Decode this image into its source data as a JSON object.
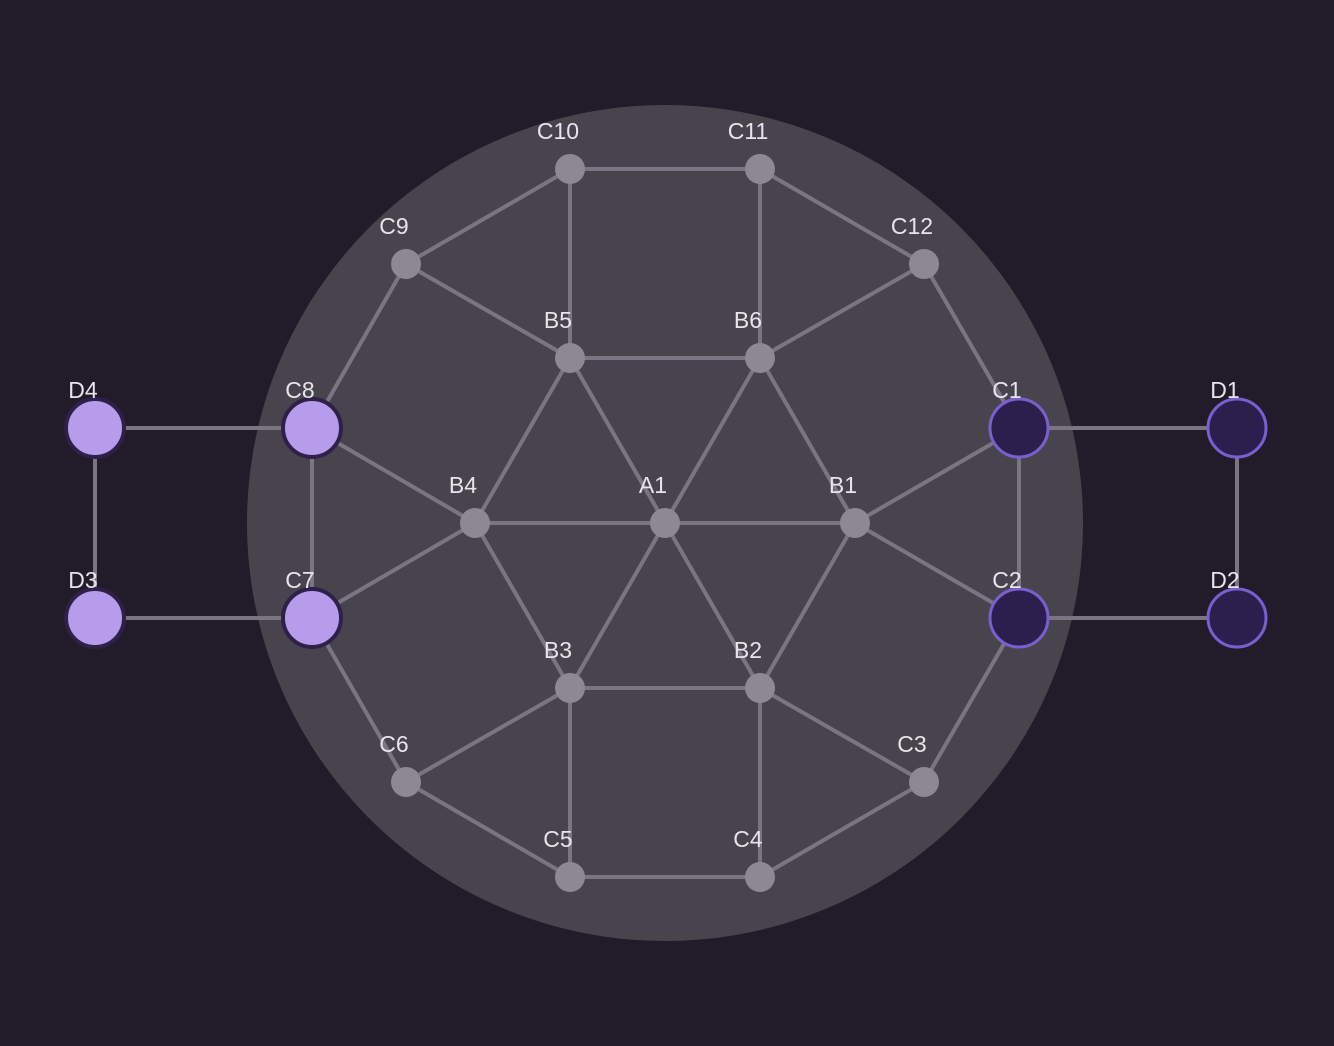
{
  "colors": {
    "background": "#221b29",
    "board_disc": "#48444d",
    "edge": "#7b7482",
    "empty_node": "#8d8892",
    "light_piece": "#b89cec",
    "light_ring": "#2e2048",
    "dark_piece": "#2c1f4e",
    "dark_ring": "#7a5fd0",
    "label": "#e8e4ec"
  },
  "nodes": [
    {
      "id": "A1",
      "label": "A1",
      "state": "empty"
    },
    {
      "id": "B1",
      "label": "B1",
      "state": "empty"
    },
    {
      "id": "B2",
      "label": "B2",
      "state": "empty"
    },
    {
      "id": "B3",
      "label": "B3",
      "state": "empty"
    },
    {
      "id": "B4",
      "label": "B4",
      "state": "empty"
    },
    {
      "id": "B5",
      "label": "B5",
      "state": "empty"
    },
    {
      "id": "B6",
      "label": "B6",
      "state": "empty"
    },
    {
      "id": "C1",
      "label": "C1",
      "state": "dark"
    },
    {
      "id": "C2",
      "label": "C2",
      "state": "dark"
    },
    {
      "id": "C3",
      "label": "C3",
      "state": "empty"
    },
    {
      "id": "C4",
      "label": "C4",
      "state": "empty"
    },
    {
      "id": "C5",
      "label": "C5",
      "state": "empty"
    },
    {
      "id": "C6",
      "label": "C6",
      "state": "empty"
    },
    {
      "id": "C7",
      "label": "C7",
      "state": "light"
    },
    {
      "id": "C8",
      "label": "C8",
      "state": "light"
    },
    {
      "id": "C9",
      "label": "C9",
      "state": "empty"
    },
    {
      "id": "C10",
      "label": "C10",
      "state": "empty"
    },
    {
      "id": "C11",
      "label": "C11",
      "state": "empty"
    },
    {
      "id": "C12",
      "label": "C12",
      "state": "empty"
    },
    {
      "id": "D1",
      "label": "D1",
      "state": "dark"
    },
    {
      "id": "D2",
      "label": "D2",
      "state": "dark"
    },
    {
      "id": "D3",
      "label": "D3",
      "state": "light"
    },
    {
      "id": "D4",
      "label": "D4",
      "state": "light"
    }
  ],
  "edges": [
    [
      "A1",
      "B1"
    ],
    [
      "A1",
      "B2"
    ],
    [
      "A1",
      "B3"
    ],
    [
      "A1",
      "B4"
    ],
    [
      "A1",
      "B5"
    ],
    [
      "A1",
      "B6"
    ],
    [
      "B1",
      "B2"
    ],
    [
      "B2",
      "B3"
    ],
    [
      "B3",
      "B4"
    ],
    [
      "B4",
      "B5"
    ],
    [
      "B5",
      "B6"
    ],
    [
      "B6",
      "B1"
    ],
    [
      "B1",
      "C1"
    ],
    [
      "B1",
      "C2"
    ],
    [
      "B2",
      "C3"
    ],
    [
      "B2",
      "C4"
    ],
    [
      "B3",
      "C5"
    ],
    [
      "B3",
      "C6"
    ],
    [
      "B4",
      "C7"
    ],
    [
      "B4",
      "C8"
    ],
    [
      "B5",
      "C9"
    ],
    [
      "B5",
      "C10"
    ],
    [
      "B6",
      "C11"
    ],
    [
      "B6",
      "C12"
    ],
    [
      "C1",
      "C2"
    ],
    [
      "C2",
      "C3"
    ],
    [
      "C3",
      "C4"
    ],
    [
      "C4",
      "C5"
    ],
    [
      "C5",
      "C6"
    ],
    [
      "C6",
      "C7"
    ],
    [
      "C7",
      "C8"
    ],
    [
      "C8",
      "C9"
    ],
    [
      "C9",
      "C10"
    ],
    [
      "C10",
      "C11"
    ],
    [
      "C11",
      "C12"
    ],
    [
      "C12",
      "C1"
    ],
    [
      "C1",
      "D1"
    ],
    [
      "C2",
      "D2"
    ],
    [
      "D1",
      "D2"
    ],
    [
      "C8",
      "D4"
    ],
    [
      "C7",
      "D3"
    ],
    [
      "D3",
      "D4"
    ]
  ]
}
